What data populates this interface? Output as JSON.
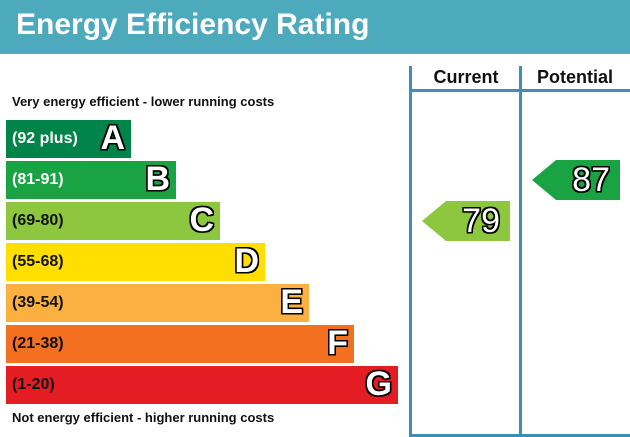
{
  "chart_data": {
    "type": "bar",
    "title": "Energy Efficiency Rating",
    "columns": {
      "current": "Current",
      "potential": "Potential"
    },
    "top_note": "Very energy efficient - lower running costs",
    "bottom_note": "Not energy efficient - higher running costs",
    "bands": [
      {
        "letter": "A",
        "range": "(92 plus)",
        "color": "#00844a",
        "text_color": "#ffffff"
      },
      {
        "letter": "B",
        "range": "(81-91)",
        "color": "#19a342",
        "text_color": "#ffffff"
      },
      {
        "letter": "C",
        "range": "(69-80)",
        "color": "#8dc63f",
        "text_color": "#111111"
      },
      {
        "letter": "D",
        "range": "(55-68)",
        "color": "#ffde00",
        "text_color": "#111111"
      },
      {
        "letter": "E",
        "range": "(39-54)",
        "color": "#fbb040",
        "text_color": "#111111"
      },
      {
        "letter": "F",
        "range": "(21-38)",
        "color": "#f37021",
        "text_color": "#111111"
      },
      {
        "letter": "G",
        "range": "(1-20)",
        "color": "#e31d23",
        "text_color": "#111111"
      }
    ],
    "current": {
      "value": "79",
      "band": "C",
      "color": "#8dc63f"
    },
    "potential": {
      "value": "87",
      "band": "B",
      "color": "#19a342"
    }
  }
}
